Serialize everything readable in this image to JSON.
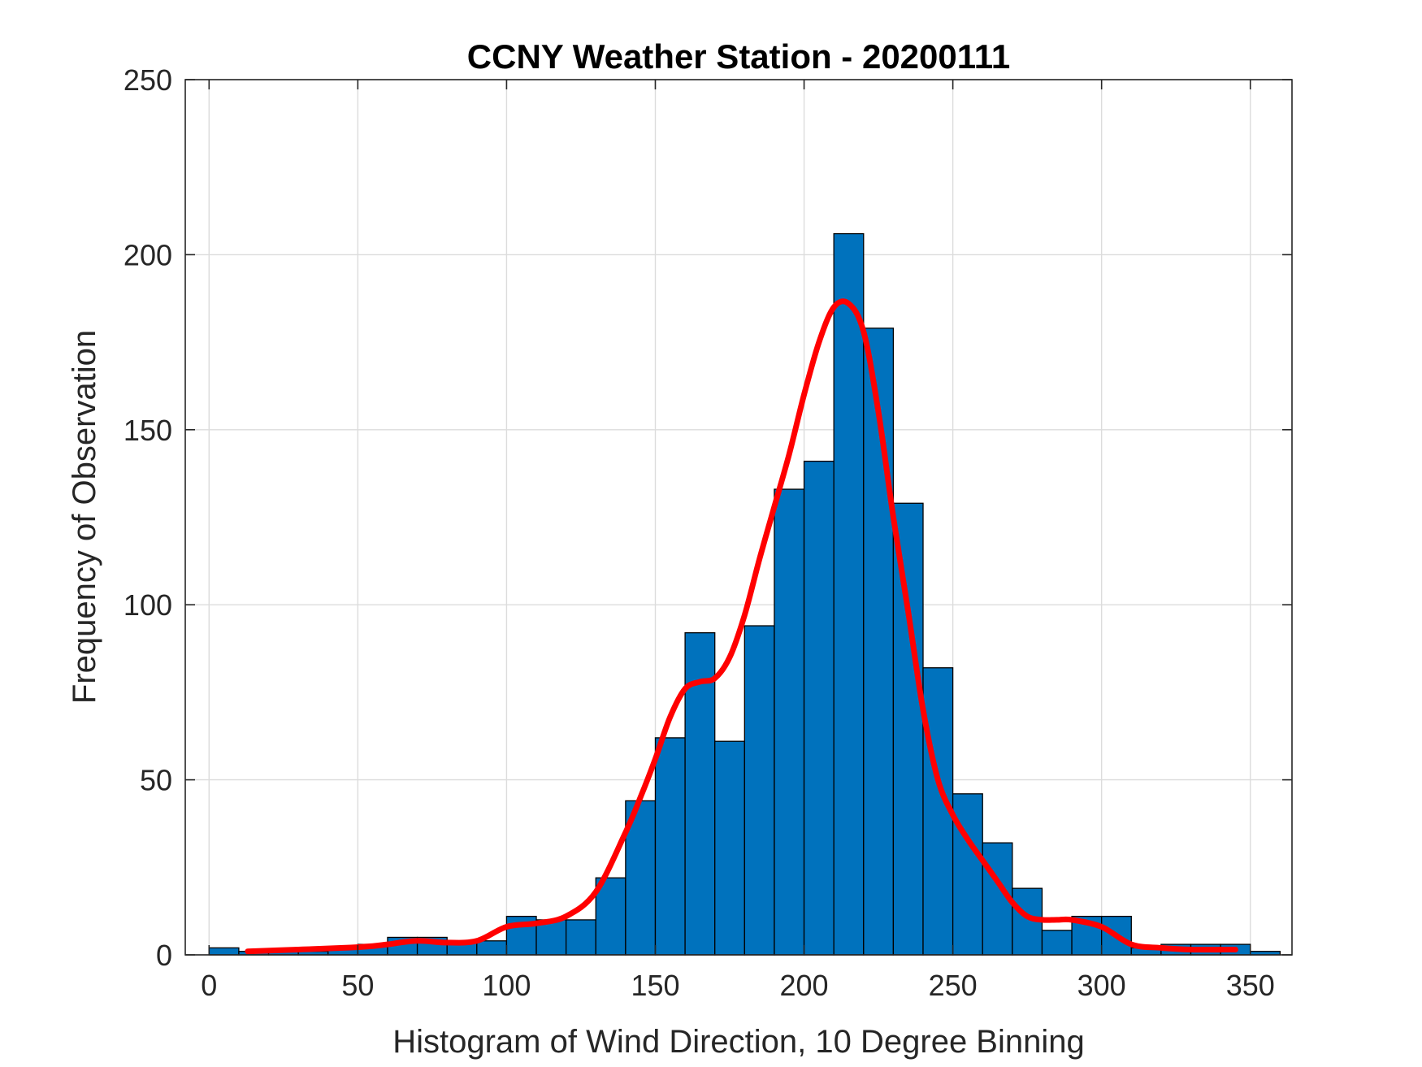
{
  "chart_data": {
    "type": "bar",
    "title": "CCNY Weather Station - 20200111",
    "xlabel": "Histogram of Wind Direction, 10 Degree Binning",
    "ylabel": "Frequency of Observation",
    "xlim": [
      -8,
      364
    ],
    "ylim": [
      0,
      250
    ],
    "xticks": [
      0,
      50,
      100,
      150,
      200,
      250,
      300,
      350
    ],
    "yticks": [
      0,
      50,
      100,
      150,
      200,
      250
    ],
    "grid": true,
    "bin_width": 10,
    "bin_edges": [
      0,
      10,
      20,
      30,
      40,
      50,
      60,
      70,
      80,
      90,
      100,
      110,
      120,
      130,
      140,
      150,
      160,
      170,
      180,
      190,
      200,
      210,
      220,
      230,
      240,
      250,
      260,
      270,
      280,
      290,
      300,
      310,
      320,
      330,
      340,
      350,
      360
    ],
    "values": [
      2,
      1,
      1,
      1,
      2,
      3,
      5,
      5,
      4,
      4,
      11,
      10,
      10,
      22,
      44,
      62,
      92,
      61,
      94,
      133,
      141,
      206,
      179,
      129,
      82,
      46,
      32,
      19,
      7,
      11,
      11,
      2,
      3,
      3,
      3,
      1
    ],
    "bar_color": "#0072BD",
    "bar_edge_color": "#000000",
    "fit_line": {
      "color": "#FF0000",
      "x": [
        13,
        30,
        45,
        55,
        60,
        70,
        80,
        90,
        100,
        110,
        120,
        130,
        140,
        145,
        150,
        155,
        160,
        165,
        170,
        175,
        180,
        185,
        190,
        195,
        200,
        205,
        210,
        215,
        220,
        225,
        230,
        235,
        240,
        245,
        250,
        255,
        260,
        265,
        270,
        275,
        280,
        285,
        290,
        300,
        310,
        320,
        330,
        345
      ],
      "y": [
        1,
        1.5,
        2,
        2.5,
        3,
        4,
        3.5,
        4,
        8,
        9,
        11,
        18,
        35,
        45,
        56,
        68,
        76,
        78,
        79,
        85,
        97,
        113,
        128,
        143,
        160,
        175,
        185,
        186,
        178,
        155,
        125,
        98,
        70,
        50,
        40,
        33,
        27,
        21,
        15,
        11,
        10,
        10,
        10,
        8,
        3,
        2,
        1.5,
        1.5
      ]
    }
  }
}
